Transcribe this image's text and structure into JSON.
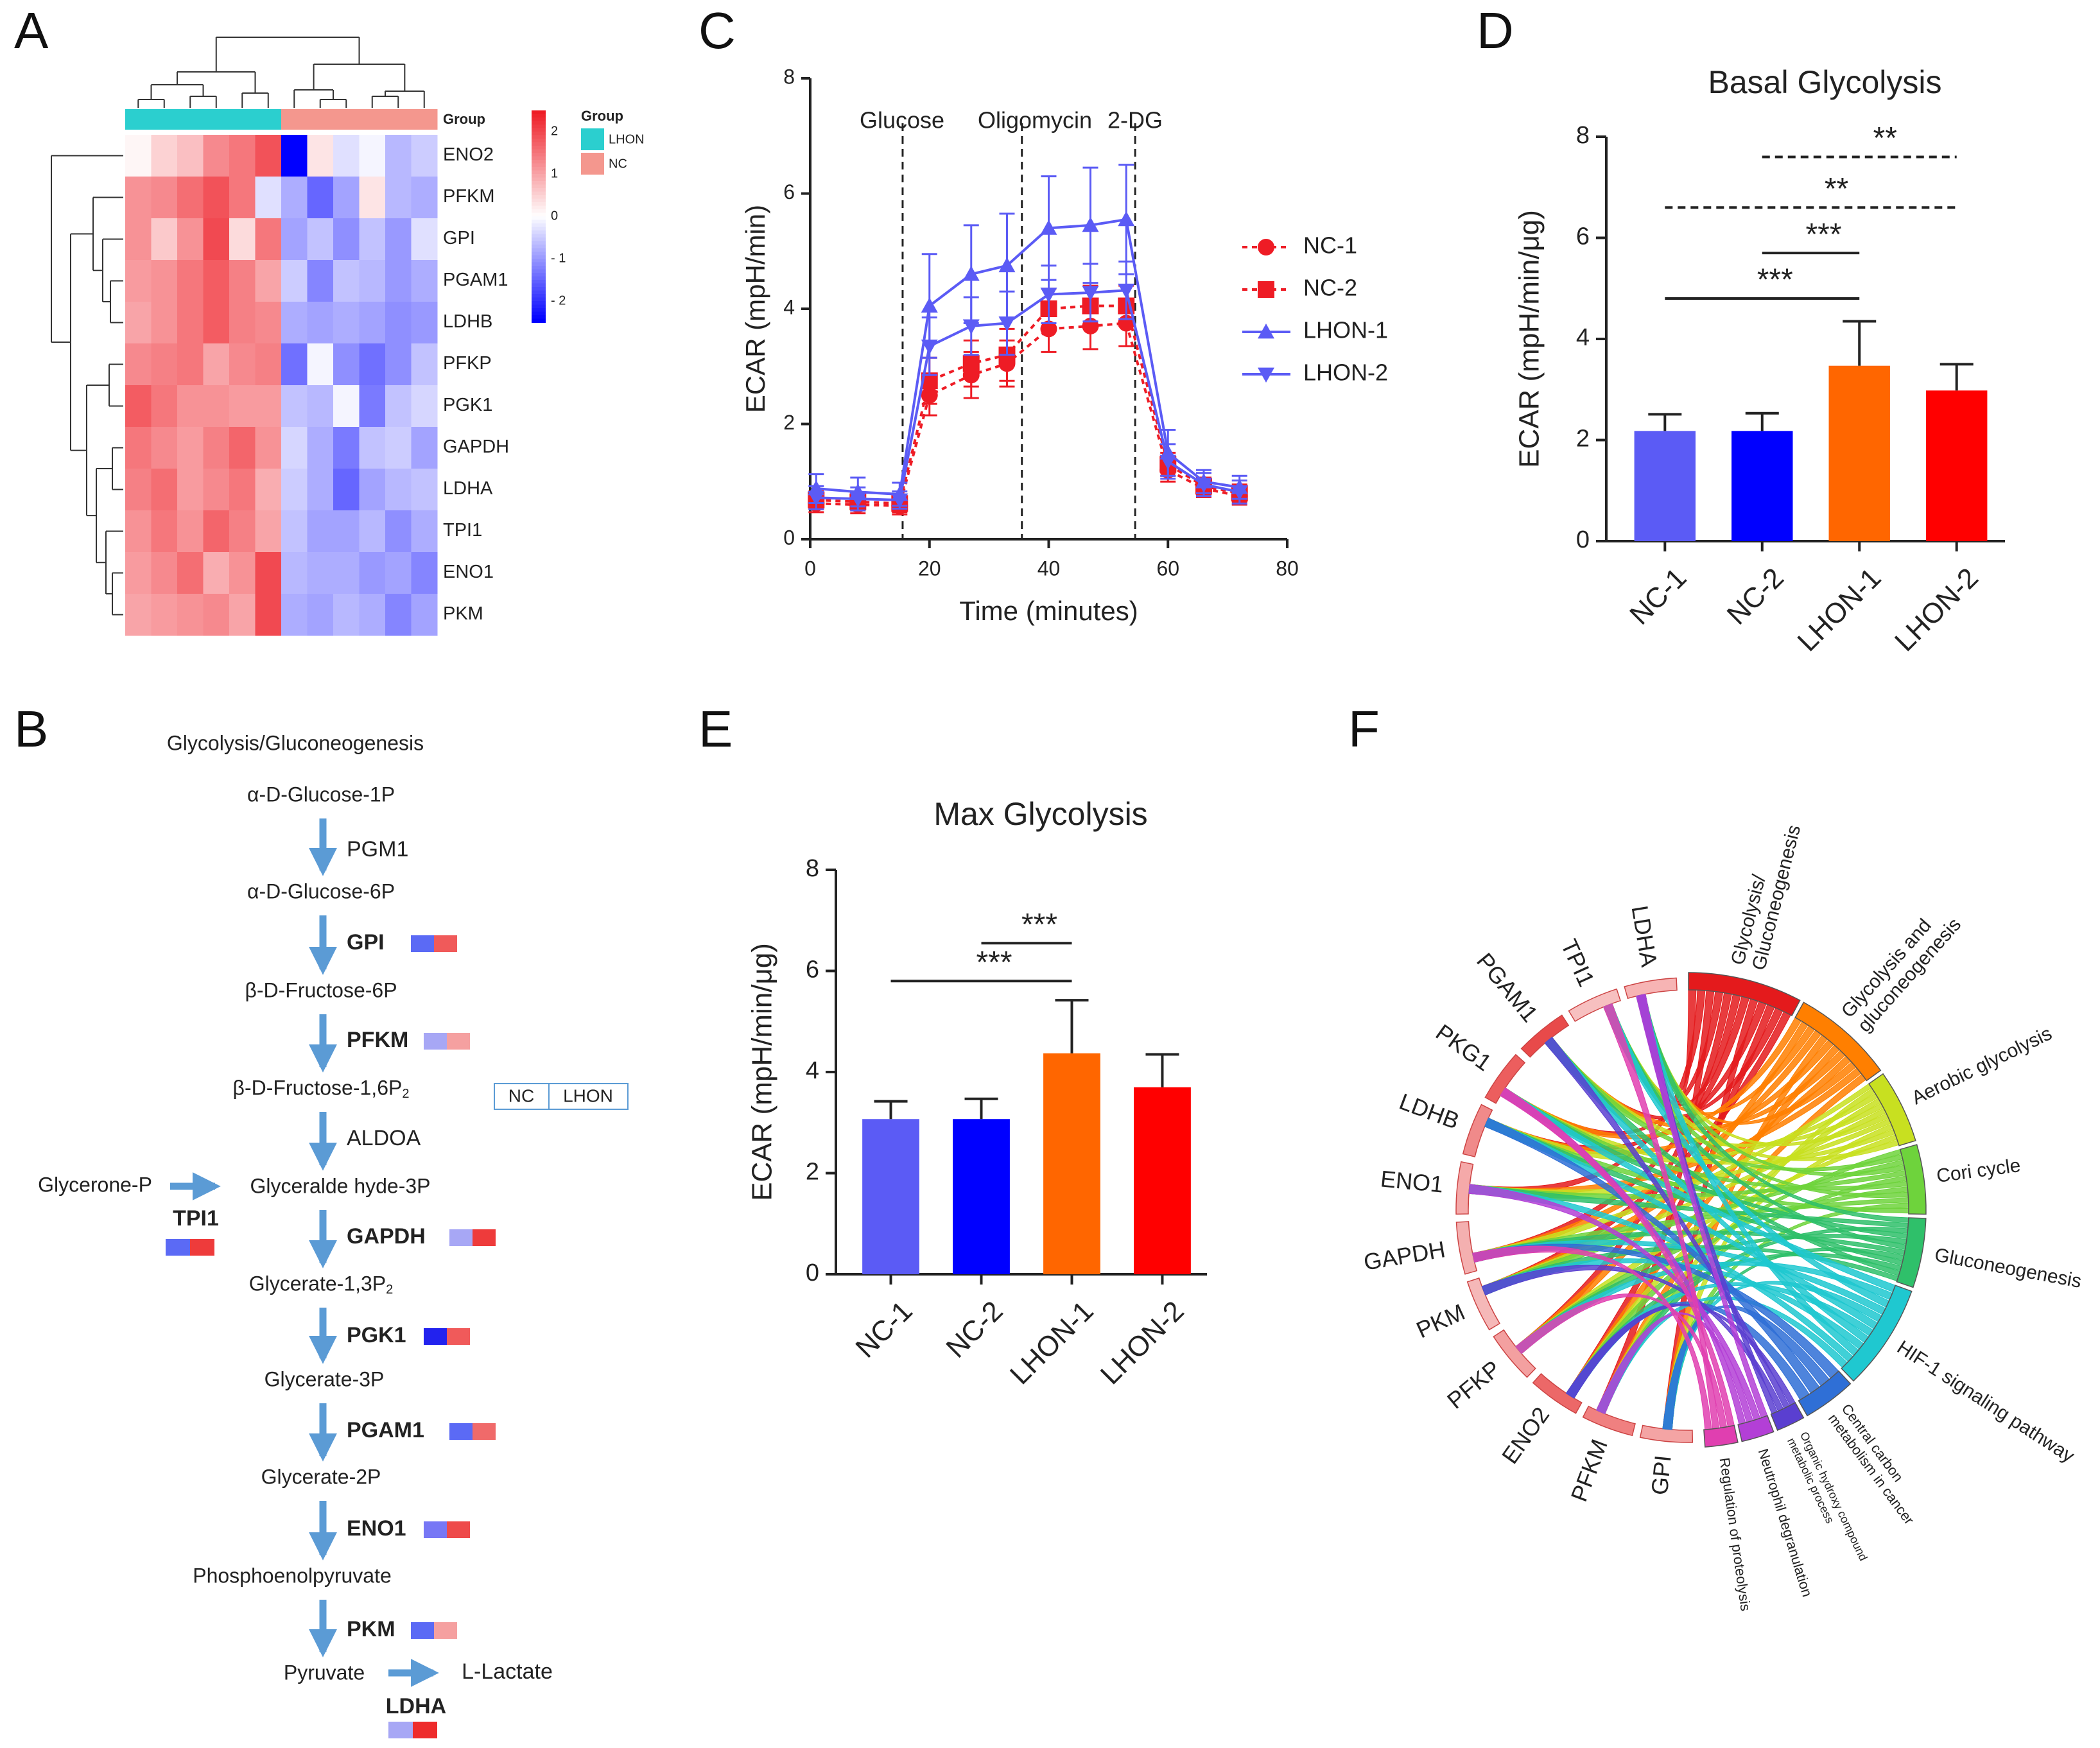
{
  "panel_labels": [
    "A",
    "B",
    "C",
    "D",
    "E",
    "F"
  ],
  "chart_data": [
    {
      "panel": "A",
      "type": "heatmap",
      "title": "",
      "columns": [
        "LHON",
        "LHON",
        "LHON",
        "LHON",
        "LHON",
        "LHON",
        "NC",
        "NC",
        "NC",
        "NC",
        "NC",
        "NC"
      ],
      "rows": [
        "ENO2",
        "PFKM",
        "GPI",
        "PGAM1",
        "LDHB",
        "PFKP",
        "PGK1",
        "GAPDH",
        "LDHA",
        "TPI1",
        "ENO1",
        "PKM"
      ],
      "values": [
        [
          0.1,
          0.5,
          0.7,
          1.3,
          1.5,
          1.9,
          -2.8,
          0.3,
          -0.3,
          -0.1,
          -0.7,
          -0.5
        ],
        [
          1.2,
          1.3,
          1.6,
          1.9,
          1.5,
          -0.3,
          -0.8,
          -1.5,
          -0.9,
          0.3,
          -0.7,
          -0.8
        ],
        [
          1.2,
          0.6,
          1.2,
          2.0,
          0.4,
          1.5,
          -0.9,
          -0.6,
          -1.1,
          -0.6,
          -1.0,
          -0.3
        ],
        [
          1.1,
          1.2,
          1.5,
          1.8,
          1.4,
          1.0,
          -0.5,
          -1.2,
          -0.6,
          -0.7,
          -1.0,
          -0.8
        ],
        [
          1.0,
          1.2,
          1.5,
          1.8,
          1.4,
          1.3,
          -0.8,
          -0.9,
          -0.8,
          -0.9,
          -1.1,
          -1.0
        ],
        [
          1.3,
          1.4,
          1.5,
          1.0,
          1.3,
          1.4,
          -1.4,
          -0.1,
          -1.1,
          -1.4,
          -1.1,
          -0.6
        ],
        [
          1.8,
          1.5,
          1.2,
          1.2,
          1.1,
          1.1,
          -0.6,
          -0.7,
          -0.1,
          -1.3,
          -0.6,
          -0.4
        ],
        [
          1.5,
          1.3,
          1.1,
          1.4,
          1.7,
          1.2,
          -0.4,
          -0.8,
          -1.3,
          -0.6,
          -0.5,
          -0.9
        ],
        [
          1.4,
          1.6,
          1.1,
          1.3,
          1.5,
          0.9,
          -0.5,
          -0.8,
          -1.5,
          -0.9,
          -0.7,
          -0.6
        ],
        [
          1.2,
          1.5,
          1.2,
          1.7,
          1.4,
          1.0,
          -0.6,
          -0.9,
          -0.9,
          -0.7,
          -1.1,
          -0.8
        ],
        [
          1.1,
          1.3,
          1.6,
          0.9,
          1.2,
          2.0,
          -0.7,
          -0.8,
          -0.8,
          -1.0,
          -0.9,
          -1.2
        ],
        [
          1.0,
          1.1,
          1.2,
          1.3,
          1.0,
          2.0,
          -0.8,
          -0.9,
          -0.7,
          -0.8,
          -1.2,
          -0.9
        ]
      ],
      "color_scale": {
        "min": -2.5,
        "max": 2.5,
        "ticks": [
          2,
          1,
          0,
          -1,
          -2
        ],
        "tick_labels": [
          "2",
          "1",
          "0",
          "- 1",
          "- 2"
        ],
        "low": "#0000ff",
        "mid": "#ffffff",
        "high": "#ee1c25"
      },
      "annotation_title": "Group",
      "legend": {
        "title": "Group",
        "entries": [
          {
            "label": "LHON",
            "color": "#2bcfcf"
          },
          {
            "label": "NC",
            "color": "#f4978e"
          }
        ]
      }
    },
    {
      "panel": "C",
      "type": "line",
      "title": "",
      "xlabel": "Time (minutes)",
      "ylabel": "ECAR (mpH/min)",
      "xlim": [
        0,
        80
      ],
      "ylim": [
        0,
        8
      ],
      "xticks": [
        0,
        20,
        40,
        60,
        80
      ],
      "yticks": [
        0,
        2,
        4,
        6,
        8
      ],
      "x": [
        1,
        8,
        15,
        20,
        27,
        33,
        40,
        47,
        53,
        60,
        66,
        72
      ],
      "events": [
        {
          "label": "Glucose",
          "x": 15.5
        },
        {
          "label": "Oligomycin",
          "x": 35.5
        },
        {
          "label": "2-DG",
          "x": 54.5
        }
      ],
      "series": [
        {
          "name": "NC-1",
          "color": "#ee1c25",
          "marker": "circle",
          "dash": true,
          "values": [
            0.62,
            0.6,
            0.58,
            2.5,
            2.85,
            3.05,
            3.65,
            3.7,
            3.75,
            1.2,
            0.88,
            0.75
          ],
          "errors": [
            0.15,
            0.15,
            0.15,
            0.35,
            0.4,
            0.4,
            0.4,
            0.4,
            0.4,
            0.2,
            0.15,
            0.15
          ]
        },
        {
          "name": "NC-2",
          "color": "#ee1c25",
          "marker": "square",
          "dash": true,
          "values": [
            0.68,
            0.65,
            0.62,
            2.75,
            3.05,
            3.2,
            4.0,
            4.05,
            4.05,
            1.3,
            0.92,
            0.8
          ],
          "errors": [
            0.15,
            0.15,
            0.15,
            0.4,
            0.4,
            0.45,
            0.35,
            0.35,
            0.35,
            0.2,
            0.15,
            0.15
          ]
        },
        {
          "name": "LHON-1",
          "color": "#5b5bf5",
          "marker": "triangle-up",
          "dash": false,
          "values": [
            0.88,
            0.82,
            0.78,
            4.05,
            4.6,
            4.75,
            5.4,
            5.45,
            5.55,
            1.5,
            1.0,
            0.9
          ],
          "errors": [
            0.25,
            0.25,
            0.2,
            0.9,
            0.85,
            0.9,
            0.9,
            1.0,
            0.95,
            0.4,
            0.2,
            0.2
          ]
        },
        {
          "name": "LHON-2",
          "color": "#5b5bf5",
          "marker": "triangle-down",
          "dash": false,
          "values": [
            0.72,
            0.7,
            0.68,
            3.35,
            3.7,
            3.75,
            4.25,
            4.28,
            4.32,
            1.35,
            0.95,
            0.82
          ],
          "errors": [
            0.2,
            0.2,
            0.15,
            0.5,
            0.5,
            0.55,
            0.5,
            0.5,
            0.5,
            0.3,
            0.2,
            0.2
          ]
        }
      ]
    },
    {
      "panel": "D",
      "type": "bar",
      "title": "Basal Glycolysis",
      "xlabel": "",
      "ylabel": "ECAR (mpH/min/μg)",
      "ylim": [
        0,
        8
      ],
      "yticks": [
        0,
        2,
        4,
        6,
        8
      ],
      "categories": [
        "NC-1",
        "NC-2",
        "LHON-1",
        "LHON-2"
      ],
      "values": [
        2.18,
        2.18,
        3.47,
        2.98
      ],
      "errors": [
        0.33,
        0.35,
        0.88,
        0.52
      ],
      "colors": [
        "#5b5bf5",
        "#0000ff",
        "#ff6600",
        "#ff0000"
      ],
      "significance": [
        {
          "from": 0,
          "to": 2,
          "y": 4.8,
          "label": "***",
          "dashed": false
        },
        {
          "from": 1,
          "to": 2,
          "y": 5.7,
          "label": "***",
          "dashed": false
        },
        {
          "from": 0,
          "to": 3,
          "y": 6.6,
          "label": "**",
          "dashed": true
        },
        {
          "from": 1,
          "to": 3,
          "y": 7.6,
          "label": "**",
          "dashed": true
        }
      ]
    },
    {
      "panel": "E",
      "type": "bar",
      "title": "Max Glycolysis",
      "xlabel": "",
      "ylabel": "ECAR (mpH/min/μg)",
      "ylim": [
        0,
        8
      ],
      "yticks": [
        0,
        2,
        4,
        6,
        8
      ],
      "categories": [
        "NC-1",
        "NC-2",
        "LHON-1",
        "LHON-2"
      ],
      "values": [
        3.07,
        3.07,
        4.37,
        3.7
      ],
      "errors": [
        0.35,
        0.4,
        1.05,
        0.65
      ],
      "colors": [
        "#5b5bf5",
        "#0000ff",
        "#ff6600",
        "#ff0000"
      ],
      "significance": [
        {
          "from": 0,
          "to": 2,
          "y": 5.8,
          "label": "***",
          "dashed": false
        },
        {
          "from": 1,
          "to": 2,
          "y": 6.55,
          "label": "***",
          "dashed": false
        }
      ]
    }
  ],
  "pathway": {
    "title": "Glycolysis/Gluconeogenesis",
    "metabolites": [
      "α-D-Glucose-1P",
      "α-D-Glucose-6P",
      "β-D-Fructose-6P",
      "β-D-Fructose-1,6P",
      "Glyceralde hyde-3P",
      "Glycerate-1,3P",
      "Glycerate-3P",
      "Glycerate-2P",
      "Phosphoenolpyruvate",
      "Pyruvate"
    ],
    "subscript": "2",
    "enzymes": [
      {
        "name": "PGM1",
        "bold": false,
        "nc": null,
        "lhon": null
      },
      {
        "name": "GPI",
        "bold": true,
        "nc": "#5b6af5",
        "lhon": "#f05a5a"
      },
      {
        "name": "PFKM",
        "bold": true,
        "nc": "#a7a7f5",
        "lhon": "#f5a0a0"
      },
      {
        "name": "ALDOA",
        "bold": false,
        "nc": null,
        "lhon": null
      },
      {
        "name": "GAPDH",
        "bold": true,
        "nc": "#a7a7f5",
        "lhon": "#ee3b3b"
      },
      {
        "name": "PGK1",
        "bold": true,
        "nc": "#2222ee",
        "lhon": "#f05a5a"
      },
      {
        "name": "PGAM1",
        "bold": true,
        "nc": "#5b6af5",
        "lhon": "#f06a6a"
      },
      {
        "name": "ENO1",
        "bold": true,
        "nc": "#7777f5",
        "lhon": "#ee4a4a"
      },
      {
        "name": "PKM",
        "bold": true,
        "nc": "#5b6af5",
        "lhon": "#f5a0a0"
      }
    ],
    "side_substrate": "Glycerone-P",
    "side_enzyme": {
      "name": "TPI1",
      "nc": "#5b6af5",
      "lhon": "#ee3b3b"
    },
    "product": "L-Lactate",
    "product_enzyme": {
      "name": "LDHA",
      "nc": "#a7a7f5",
      "lhon": "#ee2b2b"
    },
    "legend": {
      "nc": "NC",
      "lhon": "LHON"
    }
  },
  "chord": {
    "genes": [
      {
        "name": "LDHA",
        "color": "#f7b4b4"
      },
      {
        "name": "TPI1",
        "color": "#f7c0c0"
      },
      {
        "name": "PGAM1",
        "color": "#e84a4a"
      },
      {
        "name": "PKG1",
        "color": "#ec5e5e"
      },
      {
        "name": "LDHB",
        "color": "#f08a8a"
      },
      {
        "name": "ENO1",
        "color": "#f5a9a9"
      },
      {
        "name": "GAPDH",
        "color": "#f4b0b0"
      },
      {
        "name": "PKM",
        "color": "#f5b8b8"
      },
      {
        "name": "PFKP",
        "color": "#f3a0a0"
      },
      {
        "name": "ENO2",
        "color": "#ec6868"
      },
      {
        "name": "PFKM",
        "color": "#f08080"
      },
      {
        "name": "GPI",
        "color": "#f4a4a4"
      }
    ],
    "terms": [
      {
        "name": "Glycolysis/ Gluconeogenesis",
        "lines": [
          "Glycolysis/",
          "Gluconeogenesis"
        ],
        "color": "#e41a1c"
      },
      {
        "name": "Glycolysis and gluconeogenesis",
        "lines": [
          "Glycolysis and",
          "gluconeogenesis"
        ],
        "color": "#ff7f00"
      },
      {
        "name": "Aerobic glycolysis",
        "lines": [
          "Aerobic glycolysis"
        ],
        "color": "#c8e020"
      },
      {
        "name": "Cori cycle",
        "lines": [
          "Cori cycle"
        ],
        "color": "#6ed33c"
      },
      {
        "name": "Gluconeogenesis",
        "lines": [
          "Gluconeogenesis"
        ],
        "color": "#2fc06a"
      },
      {
        "name": "HIF-1 signaling pathway",
        "lines": [
          "HIF-1 signaling pathway"
        ],
        "color": "#1fc8d0"
      },
      {
        "name": "Central carbon metabolism in cancer",
        "lines": [
          "Central carbon",
          "metabolism in cancer"
        ],
        "color": "#2f6fd6"
      },
      {
        "name": "Organic hydroxy compound metabolic process",
        "lines": [
          "Organic hydroxy compound",
          "metabolic process"
        ],
        "color": "#5a3fd0"
      },
      {
        "name": "Neutrophil degranulation",
        "lines": [
          "Neutrophil degranulation"
        ],
        "color": "#b33fd6"
      },
      {
        "name": "Regulation of proteolysis",
        "lines": [
          "Regulation of proteolysis"
        ],
        "color": "#e03fb0"
      }
    ]
  }
}
